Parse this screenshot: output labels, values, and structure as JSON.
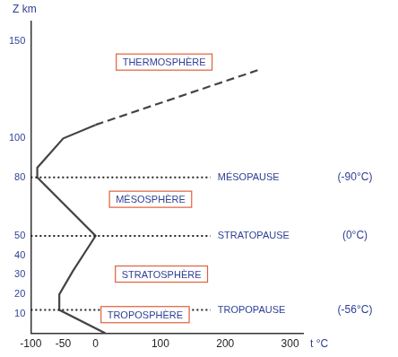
{
  "chart_data": {
    "type": "line",
    "x_label": "t °C",
    "y_label": "Z km",
    "series": [
      {
        "x": [
          15,
          -56,
          -56,
          -35,
          0,
          -90,
          -90,
          -50,
          0
        ],
        "values": [
          0,
          12,
          20,
          32,
          50,
          80,
          85,
          100,
          107
        ],
        "color": "#444444",
        "line_style": "solid"
      },
      {
        "x": [
          0,
          250
        ],
        "values": [
          107,
          135
        ],
        "color": "#444444",
        "line_style": "dashed"
      }
    ],
    "xlim": [
      -100,
      320
    ],
    "xticks": [
      -100,
      -50,
      0,
      100,
      200,
      300
    ],
    "ylim": [
      0,
      160
    ],
    "yticks": [
      10,
      20,
      30,
      40,
      50,
      80,
      100,
      150
    ],
    "grid": false,
    "layers": [
      "THERMOSPHÈRE",
      "MÉSOSPHÈRE",
      "STRATOSPHÈRE",
      "TROPOSPHÈRE"
    ],
    "boundaries": [
      {
        "label": "MÉSOPAUSE",
        "temperature_label": "(-90°C)",
        "z": 80
      },
      {
        "label": "STRATOPAUSE",
        "temperature_label": "(0°C)",
        "z": 50
      },
      {
        "label": "TROPOPAUSE",
        "temperature_label": "(-56°C)",
        "z": 12
      }
    ]
  }
}
